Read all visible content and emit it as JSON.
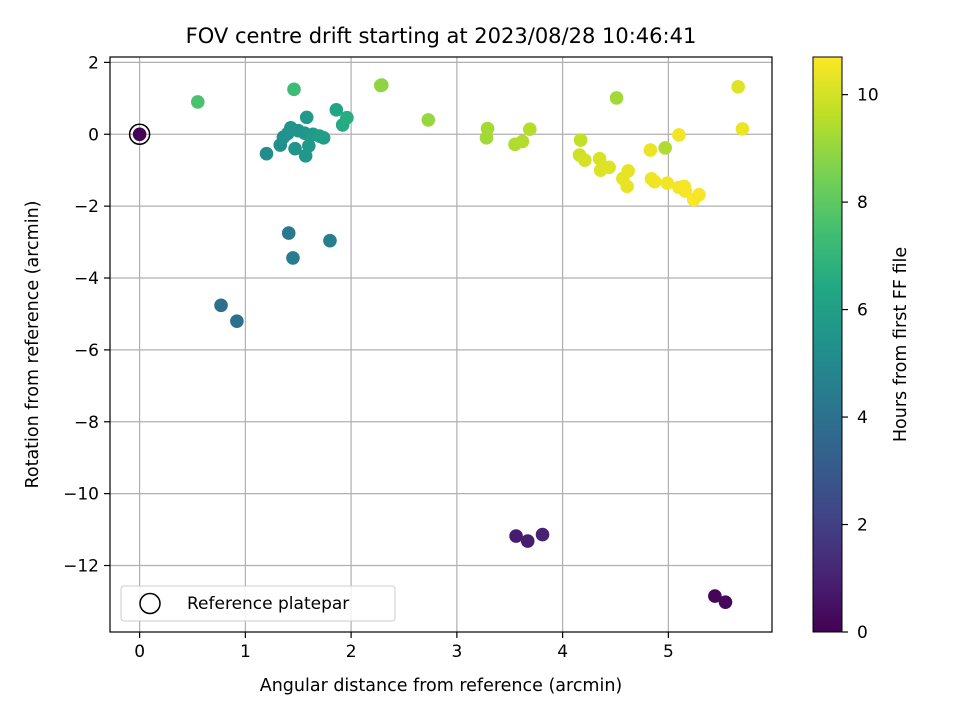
{
  "chart_data": {
    "type": "scatter",
    "title": "FOV centre drift starting at 2023/08/28 10:46:41",
    "xlabel": "Angular distance from reference (arcmin)",
    "ylabel": "Rotation from reference (arcmin)",
    "colorbar_label": "Hours from first FF file",
    "xlim": [
      -0.28,
      5.98
    ],
    "ylim": [
      -13.85,
      2.15
    ],
    "clim": [
      0,
      10.7
    ],
    "x_ticks": [
      0,
      1,
      2,
      3,
      4,
      5
    ],
    "y_ticks": [
      2,
      0,
      -2,
      -4,
      -6,
      -8,
      -10,
      -12
    ],
    "colorbar_ticks": [
      0,
      2,
      4,
      6,
      8,
      10
    ],
    "grid": true,
    "colormap": "viridis",
    "legend": {
      "placement": "bottom-left",
      "label": "Reference platepar"
    },
    "reference_point": {
      "x": 0,
      "y": 0
    },
    "points": [
      {
        "x": 0.0,
        "y": 0.0,
        "t": 0.05
      },
      {
        "x": 5.44,
        "y": -12.85,
        "t": 0.15
      },
      {
        "x": 5.54,
        "y": -13.02,
        "t": 0.25
      },
      {
        "x": 3.56,
        "y": -11.18,
        "t": 0.8
      },
      {
        "x": 3.67,
        "y": -11.32,
        "t": 0.9
      },
      {
        "x": 3.81,
        "y": -11.14,
        "t": 1.0
      },
      {
        "x": 0.77,
        "y": -4.76,
        "t": 3.9
      },
      {
        "x": 0.92,
        "y": -5.2,
        "t": 3.95
      },
      {
        "x": 1.41,
        "y": -2.75,
        "t": 4.3
      },
      {
        "x": 1.45,
        "y": -3.44,
        "t": 4.4
      },
      {
        "x": 1.8,
        "y": -2.96,
        "t": 4.6
      },
      {
        "x": 1.2,
        "y": -0.54,
        "t": 5.2
      },
      {
        "x": 1.33,
        "y": -0.3,
        "t": 5.3
      },
      {
        "x": 1.36,
        "y": -0.08,
        "t": 5.35
      },
      {
        "x": 1.4,
        "y": 0.02,
        "t": 5.4
      },
      {
        "x": 1.43,
        "y": 0.18,
        "t": 5.5
      },
      {
        "x": 1.47,
        "y": -0.4,
        "t": 5.5
      },
      {
        "x": 1.5,
        "y": 0.1,
        "t": 5.55
      },
      {
        "x": 1.56,
        "y": 0.03,
        "t": 5.6
      },
      {
        "x": 1.57,
        "y": -0.6,
        "t": 5.6
      },
      {
        "x": 1.58,
        "y": 0.47,
        "t": 5.7
      },
      {
        "x": 1.6,
        "y": -0.32,
        "t": 5.7
      },
      {
        "x": 1.64,
        "y": 0.0,
        "t": 5.8
      },
      {
        "x": 1.7,
        "y": -0.05,
        "t": 5.9
      },
      {
        "x": 1.74,
        "y": -0.1,
        "t": 5.95
      },
      {
        "x": 1.86,
        "y": 0.68,
        "t": 6.3
      },
      {
        "x": 1.92,
        "y": 0.26,
        "t": 6.5
      },
      {
        "x": 1.96,
        "y": 0.46,
        "t": 6.6
      },
      {
        "x": 1.46,
        "y": 1.25,
        "t": 7.3
      },
      {
        "x": 0.55,
        "y": 0.9,
        "t": 7.6
      },
      {
        "x": 2.28,
        "y": 1.36,
        "t": 8.9
      },
      {
        "x": 2.29,
        "y": 1.37,
        "t": 8.9
      },
      {
        "x": 2.73,
        "y": 0.4,
        "t": 9.0
      },
      {
        "x": 3.28,
        "y": -0.1,
        "t": 9.2
      },
      {
        "x": 3.29,
        "y": 0.16,
        "t": 9.25
      },
      {
        "x": 3.55,
        "y": -0.28,
        "t": 9.4
      },
      {
        "x": 3.62,
        "y": -0.2,
        "t": 9.45
      },
      {
        "x": 3.69,
        "y": 0.14,
        "t": 9.5
      },
      {
        "x": 4.51,
        "y": 1.01,
        "t": 9.2
      },
      {
        "x": 4.97,
        "y": -0.38,
        "t": 9.4
      },
      {
        "x": 4.17,
        "y": -0.16,
        "t": 9.7
      },
      {
        "x": 4.16,
        "y": -0.58,
        "t": 9.9
      },
      {
        "x": 4.21,
        "y": -0.72,
        "t": 10.0
      },
      {
        "x": 4.35,
        "y": -0.68,
        "t": 10.1
      },
      {
        "x": 4.36,
        "y": -1.0,
        "t": 10.15
      },
      {
        "x": 4.44,
        "y": -0.92,
        "t": 10.2
      },
      {
        "x": 4.57,
        "y": -1.23,
        "t": 10.3
      },
      {
        "x": 4.61,
        "y": -1.45,
        "t": 10.35
      },
      {
        "x": 4.62,
        "y": -1.02,
        "t": 10.35
      },
      {
        "x": 4.83,
        "y": -0.44,
        "t": 10.4
      },
      {
        "x": 4.84,
        "y": -1.24,
        "t": 10.45
      },
      {
        "x": 4.87,
        "y": -1.32,
        "t": 10.45
      },
      {
        "x": 4.99,
        "y": -1.36,
        "t": 10.5
      },
      {
        "x": 5.1,
        "y": -0.02,
        "t": 10.5
      },
      {
        "x": 5.1,
        "y": -1.48,
        "t": 10.55
      },
      {
        "x": 5.15,
        "y": -1.45,
        "t": 10.55
      },
      {
        "x": 5.16,
        "y": -1.58,
        "t": 10.6
      },
      {
        "x": 5.24,
        "y": -1.82,
        "t": 10.65
      },
      {
        "x": 5.29,
        "y": -1.68,
        "t": 10.6
      },
      {
        "x": 5.66,
        "y": 1.32,
        "t": 10.2
      },
      {
        "x": 5.7,
        "y": 0.15,
        "t": 10.4
      }
    ]
  }
}
